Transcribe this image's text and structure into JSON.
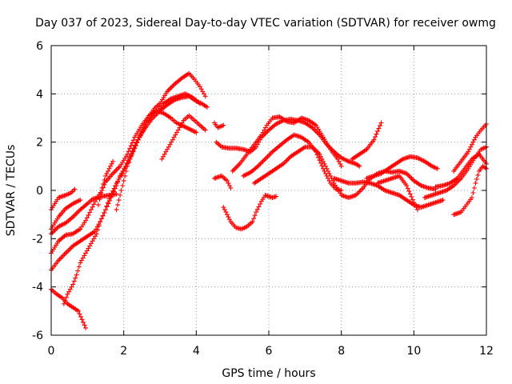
{
  "chart_data": {
    "type": "scatter",
    "title": "Day 037 of 2023, Sidereal Day-to-day VTEC variation (SDTVAR) for receiver owmg",
    "xlabel": "GPS time / hours",
    "ylabel": "SDTVAR / TECUs",
    "xlim": [
      0,
      12
    ],
    "ylim": [
      -6,
      6
    ],
    "xticks": [
      0,
      2,
      4,
      6,
      8,
      10,
      12
    ],
    "yticks": [
      -6,
      -4,
      -2,
      0,
      2,
      4,
      6
    ],
    "grid": true,
    "marker": "plus",
    "color": "#ff0000",
    "series": [
      {
        "values": [
          [
            0.0,
            -4.1
          ],
          [
            0.15,
            -4.3
          ],
          [
            0.3,
            -4.45
          ],
          [
            0.45,
            -4.7
          ],
          [
            0.6,
            -4.85
          ],
          [
            0.75,
            -5.0
          ],
          [
            0.85,
            -5.35
          ],
          [
            0.95,
            -5.7
          ]
        ]
      },
      {
        "values": [
          [
            0.0,
            -0.8
          ],
          [
            0.2,
            -0.3
          ],
          [
            0.4,
            -0.2
          ],
          [
            0.55,
            -0.1
          ],
          [
            0.65,
            0.05
          ]
        ]
      },
      {
        "values": [
          [
            0.0,
            -1.6
          ],
          [
            0.2,
            -1.1
          ],
          [
            0.4,
            -0.75
          ],
          [
            0.6,
            -0.55
          ],
          [
            0.8,
            -0.4
          ]
        ]
      },
      {
        "values": [
          [
            0.0,
            -1.8
          ],
          [
            0.2,
            -1.5
          ],
          [
            0.4,
            -1.35
          ],
          [
            0.6,
            -1.1
          ],
          [
            0.8,
            -0.8
          ],
          [
            1.0,
            -0.55
          ],
          [
            1.15,
            -0.35
          ],
          [
            1.4,
            -0.25
          ],
          [
            1.6,
            -0.2
          ],
          [
            1.8,
            -0.15
          ]
        ]
      },
      {
        "values": [
          [
            0.0,
            -2.6
          ],
          [
            0.2,
            -2.1
          ],
          [
            0.4,
            -1.85
          ],
          [
            0.6,
            -1.8
          ],
          [
            0.8,
            -1.6
          ],
          [
            0.95,
            -1.25
          ],
          [
            1.1,
            -0.8
          ],
          [
            1.25,
            -0.35
          ],
          [
            1.4,
            0.0
          ],
          [
            1.5,
            0.35
          ],
          [
            1.7,
            0.7
          ],
          [
            1.9,
            1.0
          ],
          [
            2.1,
            1.5
          ],
          [
            2.3,
            2.2
          ],
          [
            2.5,
            2.7
          ],
          [
            2.7,
            3.1
          ],
          [
            2.9,
            3.3
          ],
          [
            3.1,
            3.2
          ],
          [
            3.3,
            3.0
          ],
          [
            3.45,
            2.8
          ],
          [
            3.6,
            2.7
          ],
          [
            3.8,
            2.55
          ],
          [
            4.0,
            2.4
          ]
        ]
      },
      {
        "values": [
          [
            0.0,
            -3.3
          ],
          [
            0.2,
            -2.9
          ],
          [
            0.4,
            -2.6
          ],
          [
            0.6,
            -2.3
          ],
          [
            0.8,
            -2.1
          ],
          [
            1.0,
            -1.9
          ],
          [
            1.2,
            -1.7
          ],
          [
            1.35,
            -1.3
          ],
          [
            1.5,
            -0.8
          ],
          [
            1.6,
            -0.35
          ],
          [
            1.8,
            0.3
          ],
          [
            2.0,
            0.8
          ],
          [
            2.2,
            1.4
          ],
          [
            2.4,
            2.1
          ],
          [
            2.6,
            2.6
          ],
          [
            2.8,
            3.0
          ],
          [
            3.0,
            3.3
          ],
          [
            3.2,
            3.55
          ],
          [
            3.4,
            3.75
          ],
          [
            3.6,
            3.85
          ],
          [
            3.8,
            3.9
          ],
          [
            4.0,
            3.7
          ],
          [
            4.15,
            3.6
          ],
          [
            4.3,
            3.45
          ]
        ]
      },
      {
        "values": [
          [
            0.35,
            -4.7
          ],
          [
            0.45,
            -4.3
          ],
          [
            0.6,
            -3.9
          ],
          [
            0.7,
            -3.5
          ],
          [
            0.8,
            -3.0
          ],
          [
            0.95,
            -2.6
          ],
          [
            1.1,
            -2.2
          ],
          [
            1.25,
            -1.8
          ],
          [
            1.35,
            -1.3
          ],
          [
            1.5,
            -0.8
          ],
          [
            1.65,
            -0.3
          ],
          [
            1.8,
            0.2
          ],
          [
            1.9,
            0.6
          ],
          [
            2.05,
            1.0
          ],
          [
            2.2,
            1.5
          ],
          [
            2.35,
            2.0
          ],
          [
            2.5,
            2.4
          ],
          [
            2.7,
            2.9
          ],
          [
            2.9,
            3.2
          ],
          [
            3.1,
            3.6
          ],
          [
            3.3,
            3.8
          ],
          [
            3.5,
            3.9
          ],
          [
            3.7,
            4.0
          ],
          [
            3.9,
            3.85
          ],
          [
            4.1,
            3.6
          ]
        ]
      },
      {
        "values": [
          [
            1.3,
            -0.6
          ],
          [
            1.4,
            0.1
          ],
          [
            1.5,
            0.6
          ],
          [
            1.6,
            0.9
          ],
          [
            1.7,
            1.2
          ]
        ]
      },
      {
        "values": [
          [
            1.8,
            -0.8
          ],
          [
            1.9,
            -0.2
          ],
          [
            2.0,
            0.4
          ],
          [
            2.1,
            1.0
          ],
          [
            2.25,
            1.6
          ],
          [
            2.4,
            2.1
          ],
          [
            2.55,
            2.6
          ],
          [
            2.7,
            3.1
          ],
          [
            2.85,
            3.4
          ],
          [
            3.0,
            3.6
          ],
          [
            3.2,
            4.1
          ],
          [
            3.4,
            4.4
          ],
          [
            3.6,
            4.65
          ],
          [
            3.8,
            4.85
          ],
          [
            3.95,
            4.6
          ],
          [
            4.1,
            4.3
          ],
          [
            4.25,
            3.9
          ]
        ]
      },
      {
        "values": [
          [
            3.05,
            1.3
          ],
          [
            3.2,
            1.7
          ],
          [
            3.35,
            2.1
          ],
          [
            3.5,
            2.5
          ],
          [
            3.65,
            2.9
          ],
          [
            3.8,
            3.1
          ],
          [
            3.95,
            2.9
          ],
          [
            4.1,
            2.7
          ],
          [
            4.25,
            2.5
          ]
        ]
      },
      {
        "values": [
          [
            4.5,
            2.8
          ],
          [
            4.6,
            2.6
          ],
          [
            4.75,
            2.7
          ]
        ]
      },
      {
        "values": [
          [
            4.5,
            0.5
          ],
          [
            4.7,
            0.6
          ],
          [
            4.85,
            0.4
          ],
          [
            4.95,
            0.1
          ]
        ]
      },
      {
        "values": [
          [
            4.75,
            -0.7
          ],
          [
            4.85,
            -1.0
          ],
          [
            4.95,
            -1.3
          ],
          [
            5.1,
            -1.55
          ],
          [
            5.25,
            -1.6
          ],
          [
            5.4,
            -1.5
          ],
          [
            5.55,
            -1.3
          ],
          [
            5.65,
            -0.9
          ],
          [
            5.8,
            -0.45
          ],
          [
            5.9,
            -0.2
          ],
          [
            6.0,
            -0.25
          ],
          [
            6.1,
            -0.3
          ],
          [
            6.2,
            -0.25
          ]
        ]
      },
      {
        "values": [
          [
            4.55,
            2.0
          ],
          [
            4.7,
            1.8
          ],
          [
            4.9,
            1.75
          ],
          [
            5.1,
            1.75
          ],
          [
            5.3,
            1.7
          ],
          [
            5.5,
            1.6
          ],
          [
            5.65,
            1.8
          ],
          [
            5.8,
            2.2
          ],
          [
            6.0,
            2.5
          ],
          [
            6.2,
            2.75
          ],
          [
            6.4,
            2.9
          ],
          [
            6.6,
            2.95
          ],
          [
            6.8,
            2.9
          ],
          [
            7.0,
            2.8
          ],
          [
            7.2,
            2.6
          ],
          [
            7.4,
            2.3
          ],
          [
            7.6,
            1.9
          ],
          [
            7.8,
            1.6
          ],
          [
            8.0,
            1.35
          ],
          [
            8.2,
            1.2
          ],
          [
            8.4,
            1.1
          ],
          [
            8.5,
            1.0
          ]
        ]
      },
      {
        "values": [
          [
            5.0,
            0.8
          ],
          [
            5.2,
            1.1
          ],
          [
            5.4,
            1.5
          ],
          [
            5.6,
            1.9
          ],
          [
            5.8,
            2.3
          ],
          [
            5.95,
            2.7
          ],
          [
            6.1,
            3.0
          ],
          [
            6.3,
            3.05
          ],
          [
            6.5,
            2.85
          ],
          [
            6.7,
            2.8
          ],
          [
            6.9,
            3.0
          ],
          [
            7.1,
            2.9
          ],
          [
            7.3,
            2.7
          ],
          [
            7.5,
            2.2
          ],
          [
            7.7,
            1.7
          ],
          [
            7.9,
            1.3
          ],
          [
            8.0,
            1.0
          ]
        ]
      },
      {
        "values": [
          [
            5.3,
            0.6
          ],
          [
            5.5,
            0.75
          ],
          [
            5.7,
            1.0
          ],
          [
            5.9,
            1.3
          ],
          [
            6.1,
            1.6
          ],
          [
            6.3,
            1.85
          ],
          [
            6.5,
            2.1
          ],
          [
            6.7,
            2.3
          ],
          [
            6.9,
            2.2
          ],
          [
            7.1,
            2.0
          ],
          [
            7.3,
            1.6
          ],
          [
            7.5,
            0.9
          ],
          [
            7.7,
            0.3
          ],
          [
            7.85,
            0.05
          ],
          [
            8.0,
            0.0
          ]
        ]
      },
      {
        "values": [
          [
            5.6,
            0.3
          ],
          [
            5.8,
            0.5
          ],
          [
            6.0,
            0.7
          ],
          [
            6.2,
            0.9
          ],
          [
            6.4,
            1.1
          ],
          [
            6.6,
            1.4
          ],
          [
            6.8,
            1.6
          ],
          [
            7.0,
            1.8
          ],
          [
            7.2,
            1.8
          ],
          [
            7.4,
            1.5
          ],
          [
            7.6,
            0.9
          ],
          [
            7.8,
            0.3
          ],
          [
            8.0,
            -0.2
          ],
          [
            8.2,
            -0.3
          ],
          [
            8.4,
            -0.2
          ],
          [
            8.6,
            0.1
          ],
          [
            8.8,
            0.5
          ],
          [
            9.0,
            0.7
          ],
          [
            9.2,
            0.8
          ],
          [
            9.4,
            0.75
          ],
          [
            9.6,
            0.8
          ],
          [
            9.8,
            0.7
          ],
          [
            10.0,
            0.4
          ],
          [
            10.2,
            0.2
          ],
          [
            10.4,
            0.1
          ],
          [
            10.6,
            0.05
          ]
        ]
      },
      {
        "values": [
          [
            7.8,
            0.5
          ],
          [
            8.0,
            0.4
          ],
          [
            8.2,
            0.3
          ],
          [
            8.4,
            0.3
          ],
          [
            8.6,
            0.35
          ],
          [
            8.8,
            0.3
          ],
          [
            9.0,
            0.2
          ],
          [
            9.2,
            0.0
          ],
          [
            9.4,
            -0.1
          ],
          [
            9.6,
            -0.2
          ],
          [
            9.8,
            -0.4
          ],
          [
            10.0,
            -0.6
          ],
          [
            10.2,
            -0.7
          ],
          [
            10.4,
            -0.6
          ],
          [
            10.6,
            -0.5
          ],
          [
            10.8,
            -0.4
          ]
        ]
      },
      {
        "values": [
          [
            8.3,
            1.3
          ],
          [
            8.5,
            1.5
          ],
          [
            8.7,
            1.7
          ],
          [
            8.9,
            2.1
          ],
          [
            9.1,
            2.8
          ]
        ]
      },
      {
        "values": [
          [
            8.7,
            0.5
          ],
          [
            8.9,
            0.6
          ],
          [
            9.1,
            0.7
          ],
          [
            9.3,
            0.9
          ],
          [
            9.5,
            1.1
          ],
          [
            9.7,
            1.3
          ],
          [
            9.9,
            1.4
          ],
          [
            10.1,
            1.35
          ],
          [
            10.3,
            1.2
          ],
          [
            10.5,
            1.0
          ],
          [
            10.65,
            0.9
          ]
        ]
      },
      {
        "values": [
          [
            9.0,
            0.3
          ],
          [
            9.2,
            0.4
          ],
          [
            9.4,
            0.5
          ],
          [
            9.6,
            0.6
          ],
          [
            9.8,
            0.2
          ],
          [
            10.0,
            -0.5
          ],
          [
            10.1,
            -0.8
          ]
        ]
      },
      {
        "values": [
          [
            10.3,
            -0.3
          ],
          [
            10.5,
            -0.2
          ],
          [
            10.7,
            -0.1
          ],
          [
            10.9,
            0.0
          ],
          [
            11.1,
            0.2
          ],
          [
            11.3,
            0.5
          ],
          [
            11.5,
            0.9
          ],
          [
            11.7,
            1.4
          ],
          [
            11.85,
            1.7
          ],
          [
            12.0,
            1.8
          ]
        ]
      },
      {
        "values": [
          [
            10.6,
            0.15
          ],
          [
            10.8,
            0.2
          ],
          [
            11.0,
            0.3
          ],
          [
            11.2,
            0.5
          ],
          [
            11.4,
            0.9
          ],
          [
            11.6,
            1.3
          ],
          [
            11.8,
            1.5
          ],
          [
            12.0,
            1.1
          ]
        ]
      },
      {
        "values": [
          [
            11.1,
            -1.0
          ],
          [
            11.3,
            -0.9
          ],
          [
            11.45,
            -0.6
          ],
          [
            11.6,
            -0.3
          ],
          [
            11.7,
            0.3
          ],
          [
            11.8,
            0.8
          ],
          [
            11.9,
            1.0
          ],
          [
            12.0,
            0.9
          ]
        ]
      },
      {
        "values": [
          [
            11.1,
            0.8
          ],
          [
            11.3,
            1.2
          ],
          [
            11.5,
            1.6
          ],
          [
            11.7,
            2.2
          ],
          [
            11.85,
            2.5
          ],
          [
            12.0,
            2.75
          ]
        ]
      }
    ]
  }
}
